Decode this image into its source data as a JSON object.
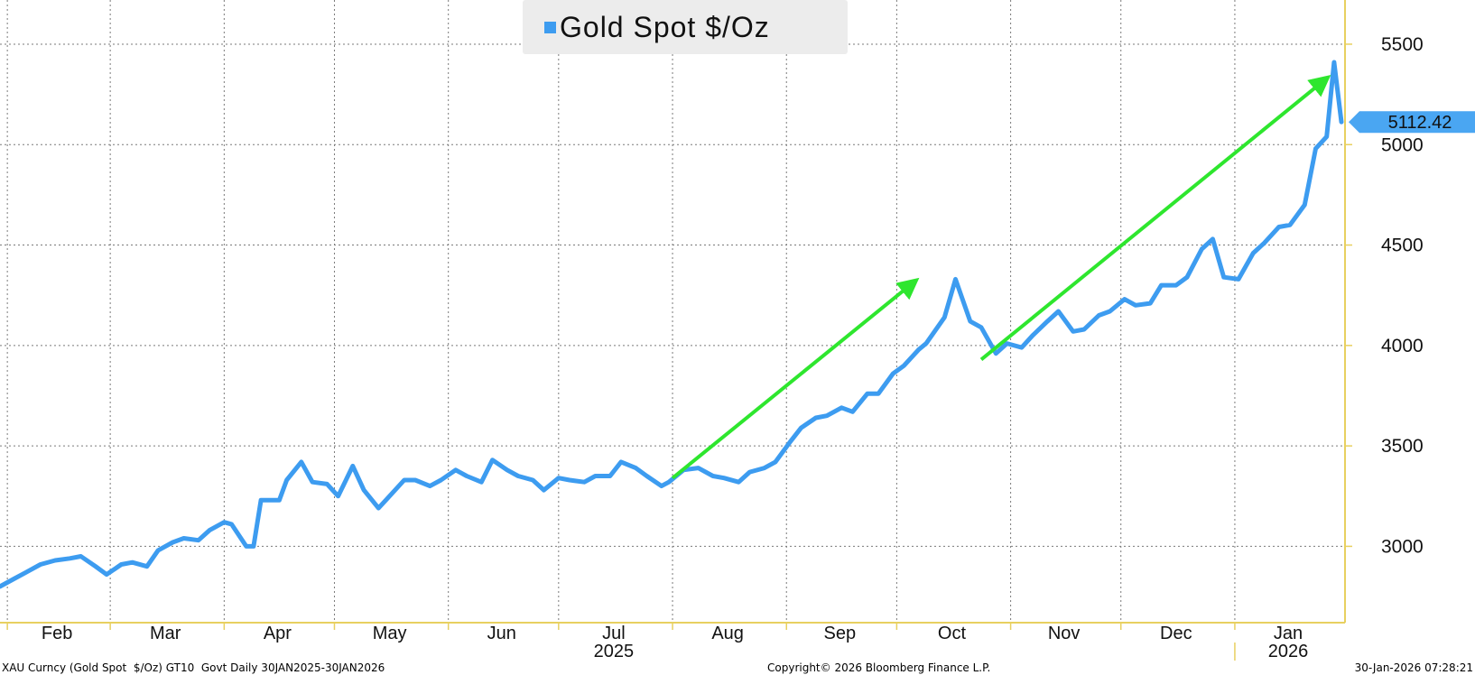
{
  "legend": {
    "label": "Gold Spot $/Oz"
  },
  "last_value_label": "5112.42",
  "colors": {
    "series": "#3d9cf0",
    "trend": "#2ee62e",
    "axis": "#e8d060",
    "grid": "#7a7a7a",
    "badge": "#4aa6f2"
  },
  "footer": {
    "left": "XAU Curncy (Gold Spot  $/Oz) GT10  Govt Daily 30JAN2025-30JAN2026",
    "center": "Copyright© 2026 Bloomberg Finance L.P.",
    "right": "30-Jan-2026 07:28:21"
  },
  "chart_data": {
    "type": "line",
    "title": "",
    "ylim": [
      2620,
      5720
    ],
    "yticks": [
      3000,
      3500,
      4000,
      4500,
      5000,
      5500
    ],
    "x_month_labels": [
      "Feb",
      "Mar",
      "Apr",
      "May",
      "Jun",
      "Jul",
      "Aug",
      "Sep",
      "Oct",
      "Nov",
      "Dec",
      "Jan"
    ],
    "x_year_labels": [
      {
        "label": "2025",
        "month": "Jul"
      },
      {
        "label": "2026",
        "month": "Jan"
      }
    ],
    "grid": true,
    "legend_position": "top-center",
    "series": [
      {
        "name": "Gold Spot $/Oz",
        "x": [
          "2025-01-30",
          "2025-02-03",
          "2025-02-06",
          "2025-02-10",
          "2025-02-14",
          "2025-02-18",
          "2025-02-21",
          "2025-02-25",
          "2025-02-28",
          "2025-03-04",
          "2025-03-07",
          "2025-03-11",
          "2025-03-14",
          "2025-03-18",
          "2025-03-21",
          "2025-03-25",
          "2025-03-28",
          "2025-04-01",
          "2025-04-03",
          "2025-04-07",
          "2025-04-09",
          "2025-04-11",
          "2025-04-16",
          "2025-04-18",
          "2025-04-22",
          "2025-04-25",
          "2025-04-29",
          "2025-05-02",
          "2025-05-06",
          "2025-05-09",
          "2025-05-13",
          "2025-05-15",
          "2025-05-20",
          "2025-05-23",
          "2025-05-27",
          "2025-05-30",
          "2025-06-03",
          "2025-06-06",
          "2025-06-10",
          "2025-06-13",
          "2025-06-17",
          "2025-06-20",
          "2025-06-24",
          "2025-06-27",
          "2025-07-01",
          "2025-07-04",
          "2025-07-08",
          "2025-07-11",
          "2025-07-15",
          "2025-07-18",
          "2025-07-22",
          "2025-07-25",
          "2025-07-29",
          "2025-07-31",
          "2025-08-04",
          "2025-08-08",
          "2025-08-12",
          "2025-08-15",
          "2025-08-19",
          "2025-08-22",
          "2025-08-26",
          "2025-08-29",
          "2025-09-02",
          "2025-09-05",
          "2025-09-09",
          "2025-09-12",
          "2025-09-16",
          "2025-09-19",
          "2025-09-23",
          "2025-09-26",
          "2025-09-30",
          "2025-10-03",
          "2025-10-07",
          "2025-10-09",
          "2025-10-14",
          "2025-10-17",
          "2025-10-21",
          "2025-10-24",
          "2025-10-28",
          "2025-10-31",
          "2025-11-04",
          "2025-11-07",
          "2025-11-11",
          "2025-11-14",
          "2025-11-18",
          "2025-11-21",
          "2025-11-25",
          "2025-11-28",
          "2025-12-02",
          "2025-12-05",
          "2025-12-09",
          "2025-12-12",
          "2025-12-16",
          "2025-12-19",
          "2025-12-23",
          "2025-12-26",
          "2025-12-29",
          "2026-01-02",
          "2026-01-06",
          "2026-01-09",
          "2026-01-13",
          "2026-01-16",
          "2026-01-20",
          "2026-01-23",
          "2026-01-26",
          "2026-01-28",
          "2026-01-30"
        ],
        "y": [
          2800,
          2840,
          2870,
          2910,
          2930,
          2940,
          2950,
          2900,
          2860,
          2910,
          2920,
          2900,
          2980,
          3020,
          3040,
          3030,
          3080,
          3120,
          3110,
          3000,
          3000,
          3230,
          3230,
          3330,
          3420,
          3320,
          3310,
          3250,
          3400,
          3280,
          3190,
          3230,
          3330,
          3330,
          3300,
          3330,
          3380,
          3350,
          3320,
          3430,
          3380,
          3350,
          3330,
          3280,
          3340,
          3330,
          3320,
          3350,
          3350,
          3420,
          3390,
          3350,
          3300,
          3320,
          3380,
          3390,
          3350,
          3340,
          3320,
          3370,
          3390,
          3420,
          3520,
          3590,
          3640,
          3650,
          3690,
          3670,
          3760,
          3760,
          3860,
          3900,
          3980,
          4010,
          4140,
          4330,
          4120,
          4090,
          3960,
          4010,
          3990,
          4050,
          4120,
          4170,
          4070,
          4080,
          4150,
          4170,
          4230,
          4200,
          4210,
          4300,
          4300,
          4340,
          4480,
          4530,
          4340,
          4330,
          4460,
          4510,
          4590,
          4600,
          4700,
          4980,
          5040,
          5410,
          5112.42
        ]
      }
    ],
    "annotations": [
      {
        "type": "arrow",
        "from": {
          "x": "2025-08-01",
          "y": 3340
        },
        "to": {
          "x": "2025-10-06",
          "y": 4320
        }
      },
      {
        "type": "arrow",
        "from": {
          "x": "2025-10-24",
          "y": 3930
        },
        "to": {
          "x": "2026-01-26",
          "y": 5330
        }
      }
    ],
    "last_value": 5112.42
  }
}
